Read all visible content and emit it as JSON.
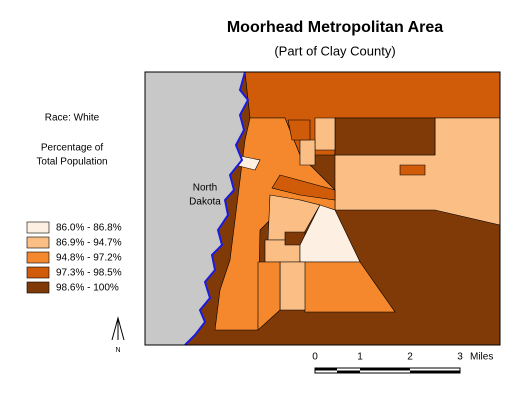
{
  "header": {
    "title": "Moorhead Metropolitan Area",
    "subtitle": "(Part of Clay County)"
  },
  "legend": {
    "title": "Race: White",
    "subtitle_lines": [
      "Percentage of",
      "Total Population"
    ],
    "items": [
      {
        "label": "86.0% - 86.8%",
        "color": "#fdf0e2"
      },
      {
        "label": "86.9% - 94.7%",
        "color": "#fbbf86"
      },
      {
        "label": "94.8% - 97.2%",
        "color": "#f5882c"
      },
      {
        "label": "97.3% - 98.5%",
        "color": "#d05c0a"
      },
      {
        "label": "98.6% - 100%",
        "color": "#7f3a08"
      }
    ]
  },
  "map": {
    "region_label_lines": [
      "North",
      "Dakota"
    ],
    "north_label": "N"
  },
  "scale_bar": {
    "ticks": [
      "0",
      "1",
      "2",
      "3"
    ],
    "unit": "Miles"
  }
}
